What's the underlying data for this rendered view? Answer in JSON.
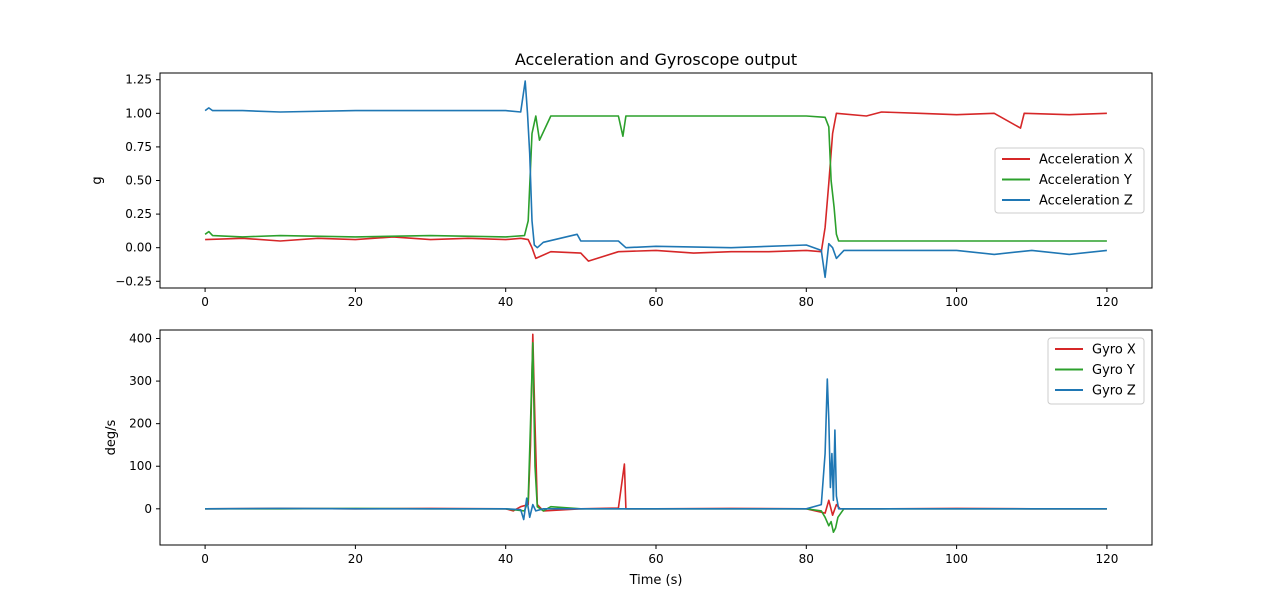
{
  "figure": {
    "title": "Acceleration and Gyroscope output"
  },
  "chart_data": [
    {
      "type": "line",
      "title": "Acceleration and Gyroscope output",
      "xlabel": "",
      "ylabel": "g",
      "xlim": [
        -6,
        126
      ],
      "ylim": [
        -0.3,
        1.3
      ],
      "xticks": [
        0,
        20,
        40,
        60,
        80,
        100,
        120
      ],
      "xtick_labels": [
        "0",
        "20",
        "40",
        "60",
        "80",
        "100",
        "120"
      ],
      "yticks": [
        -0.25,
        0,
        0.25,
        0.5,
        0.75,
        1.0,
        1.25
      ],
      "ytick_labels": [
        "−0.25",
        "0.00",
        "0.25",
        "0.50",
        "0.75",
        "1.00",
        "1.25"
      ],
      "grid": false,
      "legend_position": "center-right",
      "series": [
        {
          "name": "Acceleration X",
          "color": "#d62728",
          "x": [
            0,
            5,
            10,
            15,
            20,
            25,
            30,
            35,
            40,
            42,
            43,
            43.5,
            44,
            46,
            50,
            51,
            55,
            60,
            65,
            70,
            75,
            80,
            82,
            82.5,
            83,
            83.5,
            84,
            88,
            90,
            95,
            100,
            105,
            108.5,
            109,
            115,
            120
          ],
          "y": [
            0.06,
            0.07,
            0.05,
            0.07,
            0.06,
            0.08,
            0.06,
            0.07,
            0.06,
            0.07,
            0.06,
            0.0,
            -0.08,
            -0.03,
            -0.04,
            -0.1,
            -0.03,
            -0.02,
            -0.04,
            -0.03,
            -0.03,
            -0.02,
            -0.03,
            0.15,
            0.48,
            0.85,
            1.0,
            0.98,
            1.01,
            1.0,
            0.99,
            1.0,
            0.89,
            1.0,
            0.99,
            1.0
          ]
        },
        {
          "name": "Acceleration Y",
          "color": "#2ca02c",
          "x": [
            0,
            0.5,
            1,
            5,
            10,
            20,
            30,
            40,
            42.5,
            43,
            43.5,
            44,
            44.5,
            46,
            55,
            55.6,
            56,
            60,
            70,
            80,
            82.5,
            83,
            83.3,
            83.7,
            84,
            84.3,
            90,
            100,
            110,
            120
          ],
          "y": [
            0.1,
            0.12,
            0.09,
            0.08,
            0.09,
            0.08,
            0.09,
            0.08,
            0.09,
            0.2,
            0.85,
            0.98,
            0.8,
            0.98,
            0.98,
            0.83,
            0.98,
            0.98,
            0.98,
            0.98,
            0.97,
            0.9,
            0.5,
            0.3,
            0.1,
            0.05,
            0.05,
            0.05,
            0.05,
            0.05
          ]
        },
        {
          "name": "Acceleration Z",
          "color": "#1f77b4",
          "x": [
            0,
            0.5,
            1,
            5,
            10,
            20,
            30,
            40,
            42,
            42.6,
            42.9,
            43.2,
            43.5,
            43.8,
            44.2,
            45,
            49.5,
            50,
            55,
            56,
            60,
            70,
            80,
            82,
            82.5,
            83,
            83.5,
            84,
            85,
            90,
            100,
            105,
            110,
            115,
            120
          ],
          "y": [
            1.02,
            1.04,
            1.02,
            1.02,
            1.01,
            1.02,
            1.02,
            1.02,
            1.01,
            1.24,
            1.0,
            0.7,
            0.2,
            0.02,
            0.0,
            0.04,
            0.1,
            0.05,
            0.05,
            0.0,
            0.01,
            0.0,
            0.02,
            -0.02,
            -0.22,
            0.03,
            0.0,
            -0.08,
            -0.02,
            -0.02,
            -0.02,
            -0.05,
            -0.02,
            -0.05,
            -0.02
          ]
        }
      ]
    },
    {
      "type": "line",
      "title": "",
      "xlabel": "Time (s)",
      "ylabel": "deg/s",
      "xlim": [
        -6,
        126
      ],
      "ylim": [
        -85,
        420
      ],
      "xticks": [
        0,
        20,
        40,
        60,
        80,
        100,
        120
      ],
      "xtick_labels": [
        "0",
        "20",
        "40",
        "60",
        "80",
        "100",
        "120"
      ],
      "yticks": [
        0,
        100,
        200,
        300,
        400
      ],
      "ytick_labels": [
        "0",
        "100",
        "200",
        "300",
        "400"
      ],
      "grid": false,
      "legend_position": "upper-right",
      "series": [
        {
          "name": "Gyro X",
          "color": "#d62728",
          "x": [
            0,
            10,
            20,
            30,
            40,
            41,
            42,
            43,
            43.3,
            43.6,
            43.9,
            44.2,
            45,
            50,
            55,
            55.8,
            56,
            60,
            70,
            80,
            82.5,
            83,
            83.5,
            84,
            84.5,
            90,
            100,
            110,
            120
          ],
          "y": [
            0,
            1,
            0,
            1,
            0,
            -5,
            5,
            10,
            150,
            410,
            200,
            10,
            -5,
            0,
            2,
            105,
            0,
            0,
            1,
            0,
            -10,
            20,
            -15,
            10,
            0,
            0,
            1,
            0,
            0
          ]
        },
        {
          "name": "Gyro Y",
          "color": "#2ca02c",
          "x": [
            0,
            10,
            20,
            30,
            40,
            42.5,
            43,
            43.3,
            43.6,
            43.9,
            44.2,
            45,
            46,
            50,
            60,
            70,
            80,
            82,
            82.5,
            83,
            83.3,
            83.6,
            83.9,
            84.2,
            85,
            90,
            100,
            110,
            120
          ],
          "y": [
            0,
            0,
            1,
            0,
            0,
            -5,
            20,
            200,
            390,
            100,
            5,
            -5,
            5,
            0,
            0,
            0,
            0,
            -5,
            -20,
            -40,
            -30,
            -55,
            -45,
            -20,
            0,
            0,
            0,
            0,
            0
          ]
        },
        {
          "name": "Gyro Z",
          "color": "#1f77b4",
          "x": [
            0,
            10,
            20,
            30,
            40,
            42,
            42.4,
            42.8,
            43.2,
            43.6,
            44,
            45,
            50,
            60,
            70,
            80,
            82,
            82.5,
            82.8,
            83.0,
            83.2,
            83.4,
            83.6,
            83.8,
            84.0,
            84.3,
            85,
            90,
            100,
            110,
            120
          ],
          "y": [
            0,
            1,
            0,
            0,
            0,
            -2,
            -25,
            25,
            -20,
            10,
            -5,
            0,
            0,
            0,
            0,
            0,
            10,
            130,
            305,
            210,
            50,
            130,
            20,
            185,
            30,
            0,
            0,
            0,
            0,
            0,
            0
          ]
        }
      ]
    }
  ]
}
